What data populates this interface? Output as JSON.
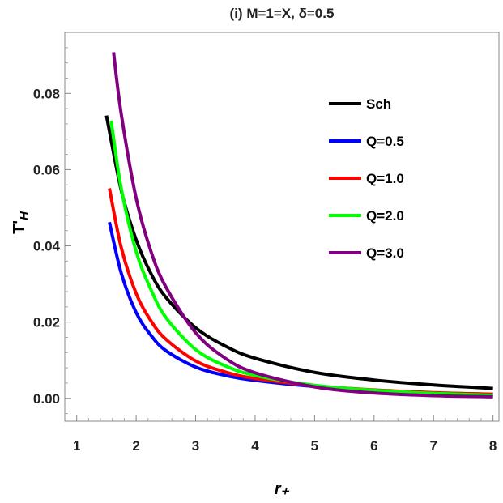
{
  "chart_data": {
    "type": "line",
    "title": "(i) M=1=X, δ=0.5",
    "xlabel": "r₊",
    "ylabel": "T'H",
    "xlim": [
      0.8,
      8.1
    ],
    "ylim": [
      -0.006,
      0.096
    ],
    "xticks": [
      1,
      2,
      3,
      4,
      5,
      6,
      7,
      8
    ],
    "yticks": [
      "0.00",
      "0.02",
      "0.04",
      "0.06",
      "0.08"
    ],
    "grid": false,
    "legend_position": "top-right",
    "series": [
      {
        "name": "Sch",
        "color": "#000000",
        "x": [
          1.5,
          1.75,
          2.0,
          2.25,
          2.5,
          3.0,
          3.5,
          4.0,
          5.0,
          6.0,
          7.0,
          8.0
        ],
        "values": [
          0.0742,
          0.0545,
          0.0416,
          0.0327,
          0.0265,
          0.0185,
          0.0137,
          0.0105,
          0.0068,
          0.0048,
          0.0035,
          0.0026
        ]
      },
      {
        "name": "Q=0.5",
        "color": "#0000ff",
        "x": [
          1.55,
          1.75,
          2.0,
          2.25,
          2.5,
          3.0,
          3.5,
          4.0,
          5.0,
          6.0,
          7.0,
          8.0
        ],
        "values": [
          0.0462,
          0.0328,
          0.0225,
          0.0165,
          0.0125,
          0.0082,
          0.006,
          0.0047,
          0.0031,
          0.0021,
          0.0014,
          0.001
        ]
      },
      {
        "name": "Q=1.0",
        "color": "#ff0000",
        "x": [
          1.55,
          1.75,
          2.0,
          2.25,
          2.5,
          3.0,
          3.5,
          4.0,
          5.0,
          6.0,
          7.0,
          8.0
        ],
        "values": [
          0.0551,
          0.0395,
          0.0275,
          0.0203,
          0.0155,
          0.0098,
          0.0069,
          0.0052,
          0.0033,
          0.0022,
          0.0015,
          0.0011
        ]
      },
      {
        "name": "Q=2.0",
        "color": "#00ff00",
        "x": [
          1.58,
          1.75,
          2.0,
          2.25,
          2.5,
          3.0,
          3.5,
          4.0,
          5.0,
          6.0,
          7.0,
          8.0
        ],
        "values": [
          0.0728,
          0.055,
          0.0385,
          0.0285,
          0.0212,
          0.0128,
          0.0085,
          0.006,
          0.0034,
          0.0021,
          0.0013,
          0.0008
        ]
      },
      {
        "name": "Q=3.0",
        "color": "#800080",
        "x": [
          1.62,
          1.75,
          2.0,
          2.25,
          2.5,
          3.0,
          3.5,
          4.0,
          5.0,
          6.0,
          7.0,
          8.0
        ],
        "values": [
          0.0908,
          0.0745,
          0.0525,
          0.0385,
          0.0292,
          0.0172,
          0.0105,
          0.0067,
          0.003,
          0.0014,
          0.0007,
          0.0004
        ]
      }
    ]
  }
}
